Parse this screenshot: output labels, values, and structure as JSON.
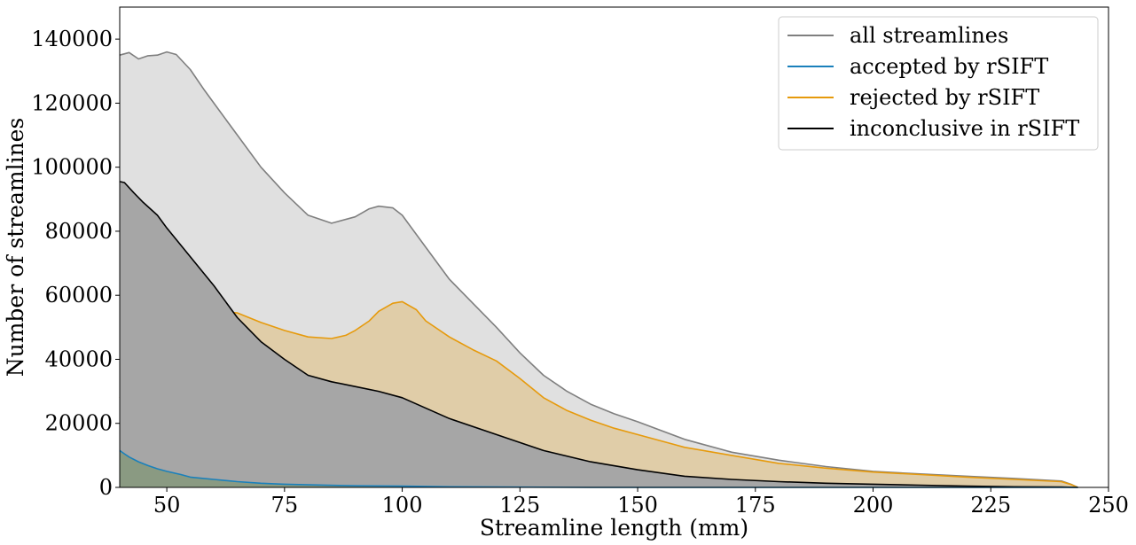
{
  "chart_data": {
    "type": "area",
    "title": "",
    "xlabel": "Streamline length (mm)",
    "ylabel": "Number of streamlines",
    "xlim": [
      40,
      250
    ],
    "ylim": [
      0,
      150000
    ],
    "xticks": [
      50,
      75,
      100,
      125,
      150,
      175,
      200,
      225,
      250
    ],
    "yticks": [
      0,
      20000,
      40000,
      60000,
      80000,
      100000,
      120000,
      140000
    ],
    "grid": false,
    "legend_position": "top-right",
    "series": [
      {
        "name": "all streamlines",
        "line_color": "#7f7f7f",
        "fill_color": "#e0e0e0",
        "fill_opacity": 1,
        "x": [
          40,
          42,
          44,
          46,
          48,
          50,
          52,
          55,
          58,
          60,
          65,
          70,
          75,
          80,
          85,
          90,
          93,
          95,
          98,
          100,
          105,
          110,
          115,
          120,
          125,
          130,
          135,
          140,
          145,
          150,
          160,
          170,
          180,
          190,
          200,
          210,
          220,
          230,
          240,
          242,
          243.5
        ],
        "y": [
          135000,
          135800,
          133800,
          134800,
          135000,
          136000,
          135200,
          130500,
          124000,
          120000,
          110000,
          100000,
          92000,
          85000,
          82500,
          84500,
          87000,
          87800,
          87300,
          85000,
          75000,
          65000,
          57500,
          50000,
          42000,
          35000,
          30000,
          26000,
          23000,
          20500,
          15000,
          11000,
          8500,
          6500,
          5000,
          4200,
          3500,
          2800,
          2000,
          1000,
          0
        ]
      },
      {
        "name": "rejected by rSIFT",
        "line_color": "#e69a0c",
        "fill_color": "#e0cda8",
        "fill_opacity": 1,
        "x": [
          40,
          42,
          45,
          48,
          50,
          52,
          55,
          58,
          60,
          65,
          70,
          73,
          75,
          80,
          85,
          88,
          90,
          93,
          95,
          98,
          100,
          103,
          105,
          110,
          115,
          120,
          125,
          130,
          135,
          140,
          145,
          150,
          160,
          170,
          180,
          190,
          200,
          210,
          220,
          230,
          240,
          242,
          243.5
        ],
        "y": [
          28000,
          34000,
          39000,
          45000,
          50000,
          53500,
          55000,
          55000,
          55000,
          54500,
          51500,
          50000,
          49000,
          47000,
          46500,
          47500,
          49000,
          52000,
          55000,
          57500,
          58000,
          55500,
          52000,
          47000,
          43000,
          39500,
          34000,
          28000,
          24000,
          21000,
          18500,
          16500,
          12500,
          10000,
          7500,
          6000,
          4800,
          4000,
          3200,
          2500,
          1800,
          900,
          0
        ]
      },
      {
        "name": "inconclusive in rSIFT",
        "line_color": "#000000",
        "fill_color": "#a6a6a6",
        "fill_opacity": 1,
        "x": [
          40,
          41,
          43,
          45,
          48,
          50,
          55,
          60,
          65,
          70,
          75,
          80,
          85,
          90,
          95,
          100,
          110,
          120,
          125,
          130,
          140,
          150,
          160,
          170,
          180,
          190,
          200,
          210,
          220,
          230,
          240,
          243.5
        ],
        "y": [
          95500,
          95200,
          92000,
          89000,
          85000,
          81000,
          72000,
          63000,
          53000,
          45500,
          40000,
          35000,
          33000,
          31500,
          30000,
          28000,
          21500,
          16500,
          14000,
          11500,
          8000,
          5500,
          3500,
          2500,
          1800,
          1300,
          1000,
          700,
          400,
          200,
          100,
          0
        ]
      },
      {
        "name": "accepted by rSIFT",
        "line_color": "#1a80bb",
        "fill_color": "#8a9a82",
        "fill_opacity": 1,
        "x": [
          40,
          41,
          42,
          44,
          46,
          48,
          50,
          53,
          55,
          60,
          65,
          70,
          75,
          80,
          90,
          100,
          110,
          120,
          140,
          243.5
        ],
        "y": [
          11500,
          10500,
          9500,
          8000,
          6800,
          5800,
          5000,
          4000,
          3200,
          2500,
          1800,
          1300,
          1000,
          800,
          500,
          400,
          200,
          100,
          0,
          0
        ]
      }
    ],
    "legend_order": [
      "all streamlines",
      "accepted by rSIFT",
      "rejected by rSIFT",
      "inconclusive in rSIFT"
    ]
  }
}
